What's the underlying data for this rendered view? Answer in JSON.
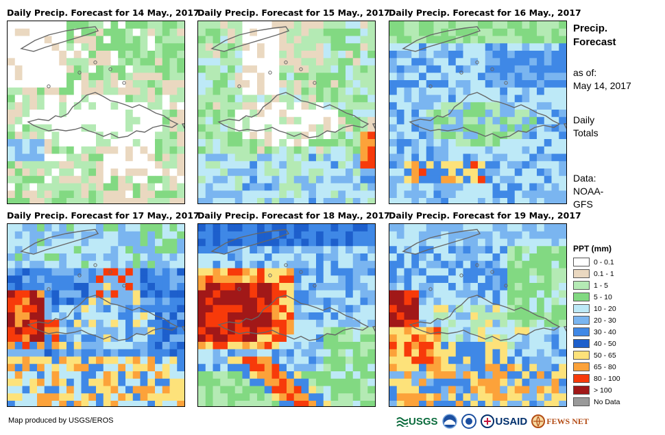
{
  "panels": [
    {
      "title": "Daily Precip. Forecast for 14 May., 2017",
      "scheme": "day14"
    },
    {
      "title": "Daily Precip. Forecast for 15 May., 2017",
      "scheme": "day15"
    },
    {
      "title": "Daily Precip. Forecast for 16 May., 2017",
      "scheme": "day16"
    },
    {
      "title": "Daily Precip. Forecast for 17 May., 2017",
      "scheme": "day17"
    },
    {
      "title": "Daily Precip. Forecast for 18 May., 2017",
      "scheme": "day18"
    },
    {
      "title": "Daily Precip. Forecast for 19 May., 2017",
      "scheme": "day19"
    }
  ],
  "side_info": {
    "heading_line1": "Precip.",
    "heading_line2": "Forecast",
    "asof_line1": "as of:",
    "asof_line2": "May 14, 2017",
    "totals_line1": "Daily",
    "totals_line2": "Totals",
    "data_line1": "Data:",
    "data_line2": "NOAA-",
    "data_line3": "GFS"
  },
  "legend": {
    "title": "PPT (mm)",
    "items": [
      {
        "label": "0 - 0.1",
        "color": "#ffffff"
      },
      {
        "label": "0.1 - 1",
        "color": "#ead8c0"
      },
      {
        "label": "1 - 5",
        "color": "#b4eab4"
      },
      {
        "label": "5 - 10",
        "color": "#82d982"
      },
      {
        "label": "10 - 20",
        "color": "#bde9f7"
      },
      {
        "label": "20 - 30",
        "color": "#7ab5f0"
      },
      {
        "label": "30 - 40",
        "color": "#3f88e6"
      },
      {
        "label": "40 - 50",
        "color": "#1d5fcc"
      },
      {
        "label": "50 - 65",
        "color": "#fde27a"
      },
      {
        "label": "65 - 80",
        "color": "#fca23a"
      },
      {
        "label": "80 - 100",
        "color": "#f73a0a"
      },
      {
        "label": "> 100",
        "color": "#a11818"
      },
      {
        "label": "No Data",
        "color": "#9a9a9a"
      }
    ]
  },
  "credit": "Map produced by USGS/EROS",
  "logos": {
    "usgs": "USGS",
    "usaid": "USAID",
    "fewsnet": "FEWS NET"
  }
}
